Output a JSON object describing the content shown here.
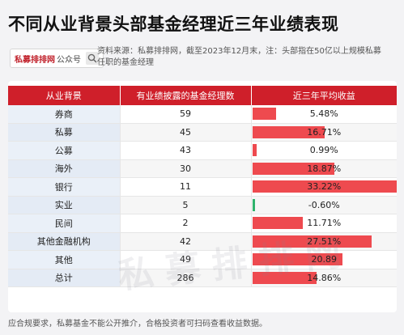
{
  "title": "不同从业背景头部基金经理近三年业绩表现",
  "source_badge": {
    "brand": "私募排排网",
    "suffix": "公众号",
    "icon": "search-icon"
  },
  "source_note": "资料来源：私募排排网，截至2023年12月末，注：头部指在50亿以上规模私募任职的基金经理",
  "table": {
    "headers": [
      "从业背景",
      "有业绩披露的基金经理数",
      "近三年平均收益"
    ],
    "rows": [
      {
        "background": "券商",
        "count": "59",
        "return_label": "5.48%",
        "return": 5.48
      },
      {
        "background": "私募",
        "count": "45",
        "return_label": "16.71%",
        "return": 16.71
      },
      {
        "background": "公募",
        "count": "43",
        "return_label": "0.99%",
        "return": 0.99
      },
      {
        "background": "海外",
        "count": "30",
        "return_label": "18.87%",
        "return": 18.87
      },
      {
        "background": "银行",
        "count": "11",
        "return_label": "33.22%",
        "return": 33.22
      },
      {
        "background": "实业",
        "count": "5",
        "return_label": "-0.60%",
        "return": -0.6
      },
      {
        "background": "民间",
        "count": "2",
        "return_label": "11.71%",
        "return": 11.71
      },
      {
        "background": "其他金融机构",
        "count": "42",
        "return_label": "27.51%",
        "return": 27.51
      },
      {
        "background": "其他",
        "count": "49",
        "return_label": "20.89",
        "return": 20.89
      },
      {
        "background": "总计",
        "count": "286",
        "return_label": "14.86%",
        "return": 14.86
      }
    ],
    "bar_colors": {
      "positive": "#ee4a4f",
      "negative": "#2fb36c"
    },
    "header_color": "#cf1f2a"
  },
  "watermark": "私募排排网",
  "footer": "应合规要求，私募基金不能公开推介，合格投资者可扫码查看收益数据。"
}
